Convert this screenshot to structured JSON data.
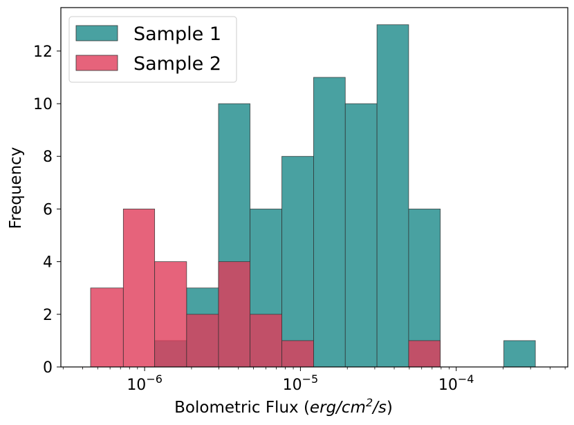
{
  "chart_data": {
    "type": "bar",
    "subtype": "overlaid-histogram",
    "xscale": "log",
    "xlabel_plain": "Bolometric Flux (",
    "xlabel_italic": "erg/cm",
    "xlabel_sup": "2",
    "xlabel_italic2": "/s",
    "xlabel_close": ")",
    "ylabel": "Frequency",
    "xlim": [
      2.9e-07,
      0.00052
    ],
    "ylim": [
      0,
      13.65
    ],
    "yticks": [
      0,
      2,
      4,
      6,
      8,
      10,
      12
    ],
    "xticks": [
      {
        "value": 1e-06,
        "base": "10",
        "exp": "−6"
      },
      {
        "value": 1e-05,
        "base": "10",
        "exp": "−5"
      },
      {
        "value": 0.0001,
        "base": "10",
        "exp": "−4"
      }
    ],
    "bin_edges": [
      4.5e-07,
      7.3e-07,
      1.16e-06,
      1.86e-06,
      2.98e-06,
      4.75e-06,
      7.6e-06,
      1.215e-05,
      1.94e-05,
      3.1e-05,
      4.95e-05,
      7.9e-05,
      0.000126,
      0.000202,
      0.000322
    ],
    "series": [
      {
        "name": "Sample 1",
        "color": "#1b8a8a",
        "values": [
          0,
          0,
          1,
          3,
          10,
          6,
          8,
          11,
          10,
          13,
          6,
          0,
          0,
          1
        ]
      },
      {
        "name": "Sample 2",
        "color": "#e03c5a",
        "values": [
          3,
          6,
          4,
          2,
          4,
          2,
          1,
          0,
          0,
          0,
          1,
          0,
          0,
          0
        ]
      }
    ],
    "legend_position": "top-left",
    "grid": false
  }
}
